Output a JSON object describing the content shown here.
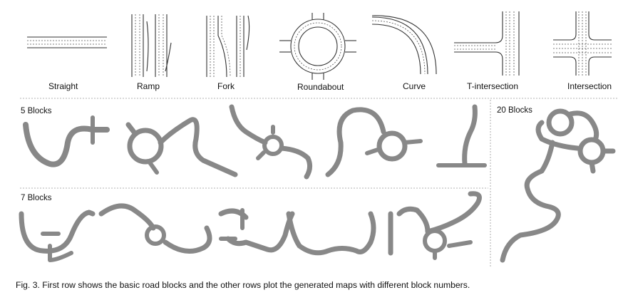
{
  "blocks": [
    {
      "label": "Straight",
      "icon": "straight-road-icon"
    },
    {
      "label": "Ramp",
      "icon": "ramp-road-icon"
    },
    {
      "label": "Fork",
      "icon": "fork-road-icon"
    },
    {
      "label": "Roundabout",
      "icon": "roundabout-road-icon"
    },
    {
      "label": "Curve",
      "icon": "curve-road-icon"
    },
    {
      "label": "T-intersection",
      "icon": "t-intersection-road-icon"
    },
    {
      "label": "Intersection",
      "icon": "intersection-road-icon"
    }
  ],
  "sections": {
    "five": "5 Blocks",
    "seven": "7 Blocks",
    "twenty": "20 Blocks"
  },
  "caption": "Fig. 3. First row shows the basic road blocks and the other rows plot the generated maps with different block numbers.",
  "colors": {
    "road_edge": "#333333",
    "road_fill": "#e6e6e6",
    "separator": "#999999"
  }
}
